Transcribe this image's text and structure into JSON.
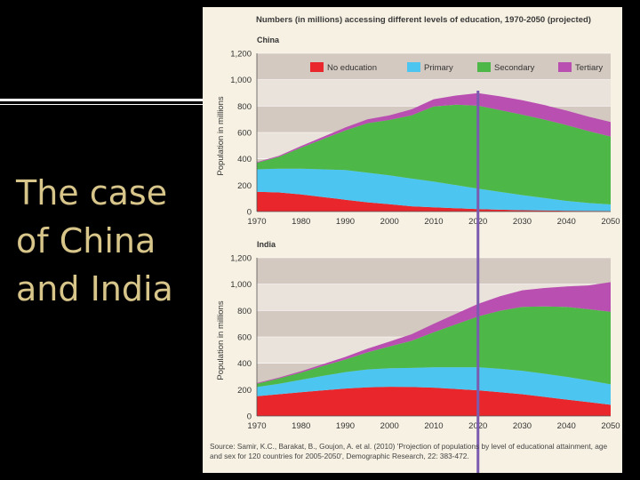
{
  "slide": {
    "title": "The case\nof China\nand India"
  },
  "figure": {
    "title": "Numbers (in millions) accessing different levels of education, 1970-2050 (projected)",
    "source": "Source: Samir, K.C., Barakat, B., Goujon, A. et al. (2010) 'Projection of populations by level of educational attainment, age and sex for 120 countries for 2005-2050', Demographic Research, 22: 383-472.",
    "marker_year": 2020,
    "marker_color": "#7a5bb0"
  },
  "colors": {
    "No education": "#e8262b",
    "Primary": "#4cc6f0",
    "Secondary": "#4db848",
    "Tertiary": "#b94fb0",
    "band_dark": "#d4c9c0",
    "band_light": "#eae3dc"
  },
  "chart_data": [
    {
      "type": "area",
      "stacked": true,
      "panel_label": "China",
      "ylabel": "Population in millions",
      "ylim": [
        0,
        1200
      ],
      "yticks": [
        0,
        200,
        400,
        600,
        800,
        "1,000",
        "1,200"
      ],
      "legend": "top",
      "x": [
        1970,
        1975,
        1980,
        1985,
        1990,
        1995,
        2000,
        2005,
        2010,
        2015,
        2020,
        2025,
        2030,
        2035,
        2040,
        2045,
        2050
      ],
      "xticks": [
        1970,
        1980,
        1990,
        2000,
        2010,
        2020,
        2030,
        2040,
        2050
      ],
      "series": [
        {
          "name": "No education",
          "values": [
            150,
            145,
            130,
            110,
            90,
            70,
            55,
            40,
            32,
            25,
            18,
            14,
            10,
            8,
            6,
            5,
            4
          ]
        },
        {
          "name": "Primary",
          "values": [
            170,
            180,
            195,
            210,
            225,
            225,
            220,
            210,
            195,
            175,
            155,
            135,
            115,
            95,
            75,
            60,
            50
          ]
        },
        {
          "name": "Secondary",
          "values": [
            50,
            90,
            160,
            230,
            300,
            375,
            420,
            480,
            570,
            610,
            630,
            620,
            610,
            595,
            575,
            545,
            515
          ]
        },
        {
          "name": "Tertiary",
          "values": [
            5,
            8,
            12,
            17,
            23,
            30,
            35,
            45,
            55,
            70,
            95,
            105,
            110,
            110,
            110,
            110,
            110
          ]
        }
      ]
    },
    {
      "type": "area",
      "stacked": true,
      "panel_label": "India",
      "ylabel": "Population in millions",
      "ylim": [
        0,
        1200
      ],
      "yticks": [
        0,
        200,
        400,
        600,
        800,
        "1,000",
        "1,200"
      ],
      "x": [
        1970,
        1975,
        1980,
        1985,
        1990,
        1995,
        2000,
        2005,
        2010,
        2015,
        2020,
        2025,
        2030,
        2035,
        2040,
        2045,
        2050
      ],
      "xticks": [
        1970,
        1980,
        1990,
        2000,
        2010,
        2020,
        2030,
        2040,
        2050
      ],
      "series": [
        {
          "name": "No education",
          "values": [
            150,
            165,
            180,
            195,
            208,
            218,
            222,
            220,
            215,
            205,
            195,
            180,
            165,
            145,
            125,
            105,
            85
          ]
        },
        {
          "name": "Primary",
          "values": [
            70,
            80,
            95,
            110,
            125,
            135,
            140,
            145,
            155,
            165,
            175,
            178,
            178,
            176,
            172,
            165,
            155
          ]
        },
        {
          "name": "Secondary",
          "values": [
            25,
            40,
            55,
            75,
            95,
            130,
            165,
            205,
            265,
            325,
            385,
            440,
            485,
            510,
            530,
            540,
            550
          ]
        },
        {
          "name": "Tertiary",
          "values": [
            5,
            7,
            10,
            14,
            20,
            28,
            38,
            50,
            65,
            80,
            95,
            110,
            125,
            140,
            155,
            180,
            225
          ]
        }
      ]
    }
  ]
}
